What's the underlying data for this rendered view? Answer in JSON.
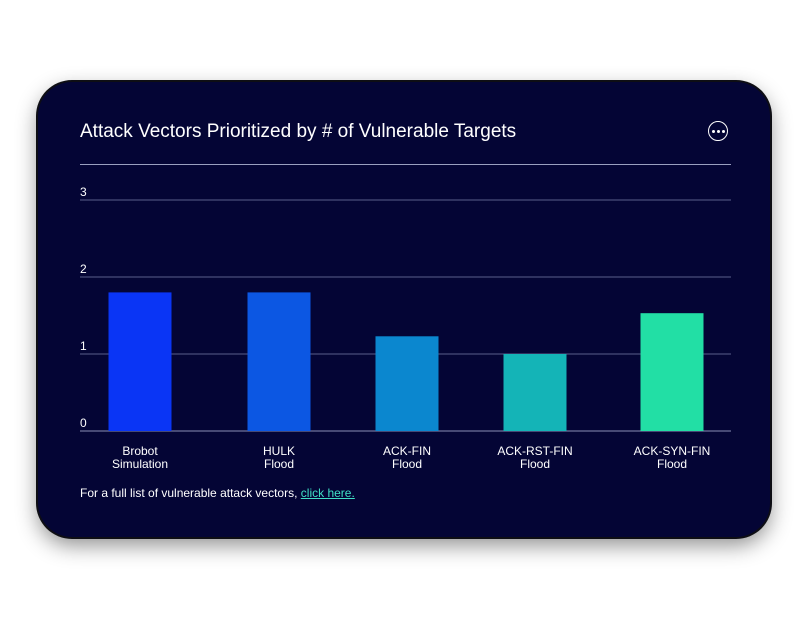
{
  "card": {
    "title": "Attack Vectors Prioritized by # of Vulnerable Targets",
    "more_icon": "more-horizontal-icon"
  },
  "footer": {
    "text": "For a full list of vulnerable attack vectors,",
    "link_text": "click here."
  },
  "colors": {
    "background": "#040535",
    "link": "#3fe0c5",
    "gridline": "#5a5f8a"
  },
  "chart_data": {
    "type": "bar",
    "title": "Attack Vectors Prioritized by # of Vulnerable Targets",
    "xlabel": "",
    "ylabel": "",
    "ylim": [
      0,
      3
    ],
    "yticks": [
      "0",
      "1",
      "2",
      "3"
    ],
    "grid": true,
    "categories": [
      [
        "Brobot",
        "Simulation"
      ],
      [
        "HULK",
        "Flood"
      ],
      [
        "ACK-FIN",
        "Flood"
      ],
      [
        "ACK-RST-FIN",
        "Flood"
      ],
      [
        "ACK-SYN-FIN",
        "Flood"
      ]
    ],
    "values": [
      1.8,
      1.8,
      1.23,
      1.0,
      1.53
    ],
    "bar_colors": [
      "#0a35f5",
      "#0c57e3",
      "#0b87cf",
      "#14b4b7",
      "#22dfa5"
    ]
  }
}
